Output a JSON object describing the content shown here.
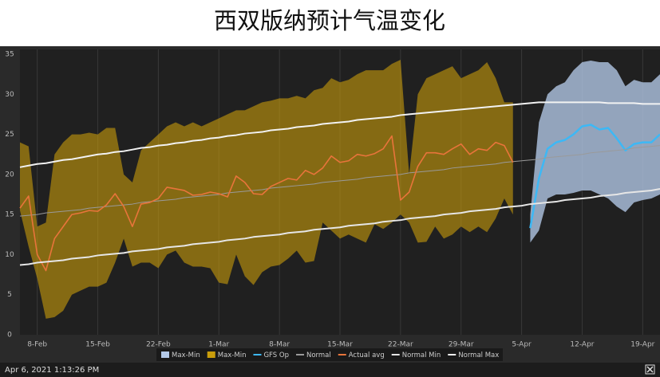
{
  "chart_data": {
    "type": "line",
    "title": "西双版纳预计气温变化",
    "footer": "Apr 6, 2021 1:13:26 PM",
    "categories": [
      null,
      null,
      "8-Feb",
      null,
      null,
      null,
      null,
      null,
      null,
      "15-Feb",
      null,
      null,
      null,
      null,
      null,
      null,
      "22-Feb",
      null,
      null,
      null,
      null,
      null,
      null,
      "1-Mar",
      null,
      null,
      null,
      null,
      null,
      null,
      "8-Mar",
      null,
      null,
      null,
      null,
      null,
      null,
      "15-Mar",
      null,
      null,
      null,
      null,
      null,
      null,
      "22-Mar",
      null,
      null,
      null,
      null,
      null,
      null,
      "29-Mar",
      null,
      null,
      null,
      null,
      null,
      null,
      "5-Apr",
      null,
      null,
      null,
      null,
      null,
      null,
      "12-Apr",
      null,
      null,
      null,
      null,
      null,
      null,
      "19-Apr",
      null,
      null
    ],
    "ylim": [
      0,
      35
    ],
    "yticks": [
      0,
      5,
      10,
      15,
      20,
      25,
      30,
      35
    ],
    "grid": false,
    "series": [
      {
        "name": "Max-Min",
        "type": "range",
        "color": "#b3c9e8",
        "high": [
          null,
          null,
          null,
          null,
          null,
          null,
          null,
          null,
          null,
          null,
          null,
          null,
          null,
          null,
          null,
          null,
          null,
          null,
          null,
          null,
          null,
          null,
          null,
          null,
          null,
          null,
          null,
          null,
          null,
          null,
          null,
          null,
          null,
          null,
          null,
          null,
          null,
          null,
          null,
          null,
          null,
          null,
          null,
          null,
          null,
          null,
          null,
          null,
          null,
          null,
          null,
          null,
          null,
          null,
          null,
          null,
          null,
          null,
          null,
          15,
          26.5,
          30,
          31,
          31.5,
          33,
          34,
          34.2,
          34,
          34,
          33,
          31,
          31.8,
          31.5,
          31.5,
          32.5
        ],
        "low": [
          null,
          null,
          null,
          null,
          null,
          null,
          null,
          null,
          null,
          null,
          null,
          null,
          null,
          null,
          null,
          null,
          null,
          null,
          null,
          null,
          null,
          null,
          null,
          null,
          null,
          null,
          null,
          null,
          null,
          null,
          null,
          null,
          null,
          null,
          null,
          null,
          null,
          null,
          null,
          null,
          null,
          null,
          null,
          null,
          null,
          null,
          null,
          null,
          null,
          null,
          null,
          null,
          null,
          null,
          null,
          null,
          null,
          null,
          null,
          11.5,
          13,
          17,
          17.5,
          17.5,
          17.7,
          18,
          18,
          17.5,
          17,
          16,
          15.3,
          16.5,
          16.8,
          17,
          17.5
        ]
      },
      {
        "name": "Max-Min",
        "type": "range",
        "color": "#c99d0b",
        "high": [
          24,
          23.5,
          13.5,
          14,
          22.5,
          24,
          25,
          25,
          25.2,
          25,
          25.8,
          25.8,
          20,
          19,
          23,
          24,
          25,
          26,
          26.5,
          26,
          26.5,
          26,
          26.5,
          27,
          27.5,
          28,
          28,
          28.5,
          29,
          29.2,
          29.5,
          29.5,
          29.8,
          29.5,
          30.5,
          30.8,
          32,
          31.5,
          31.8,
          32.5,
          33,
          33,
          33,
          33.8,
          34.3,
          20,
          30,
          32,
          32.5,
          33,
          33.5,
          32,
          32.5,
          33,
          34,
          32,
          29,
          29,
          null,
          null,
          null,
          null,
          null,
          null,
          null,
          null,
          null,
          null,
          null,
          null,
          null,
          null,
          null,
          null,
          null
        ],
        "low": [
          15.5,
          11,
          7,
          2,
          2.2,
          3,
          5,
          5.5,
          6,
          6,
          6.5,
          9,
          12,
          8.5,
          9,
          9,
          8.3,
          10,
          10.5,
          9,
          8.5,
          8.5,
          8.3,
          6.5,
          6.3,
          10,
          7.3,
          6.2,
          7.8,
          8.5,
          8.7,
          9.5,
          10.5,
          9,
          9.2,
          14,
          13,
          12,
          12.5,
          12,
          11.5,
          13.8,
          13.2,
          14,
          15,
          14,
          11.5,
          11.6,
          13.5,
          12,
          12.5,
          13.5,
          12.8,
          13.5,
          12.8,
          14.5,
          17,
          15,
          null,
          null,
          null,
          null,
          null,
          null,
          null,
          null,
          null,
          null,
          null,
          null,
          null,
          null,
          null,
          null,
          null
        ]
      },
      {
        "name": "GFS Op",
        "type": "line",
        "color": "#3db8f5",
        "values": [
          null,
          null,
          null,
          null,
          null,
          null,
          null,
          null,
          null,
          null,
          null,
          null,
          null,
          null,
          null,
          null,
          null,
          null,
          null,
          null,
          null,
          null,
          null,
          null,
          null,
          null,
          null,
          null,
          null,
          null,
          null,
          null,
          null,
          null,
          null,
          null,
          null,
          null,
          null,
          null,
          null,
          null,
          null,
          null,
          null,
          null,
          null,
          null,
          null,
          null,
          null,
          null,
          null,
          null,
          null,
          null,
          null,
          null,
          null,
          13.3,
          19.5,
          23.2,
          24,
          24.3,
          25,
          26,
          26.2,
          25.6,
          25.8,
          24.5,
          23,
          23.8,
          24,
          24,
          25
        ]
      },
      {
        "name": "Normal",
        "type": "line",
        "color": "#9a9a9a",
        "values": [
          14.8,
          14.9,
          15.0,
          15.2,
          15.3,
          15.4,
          15.5,
          15.6,
          15.8,
          15.9,
          16.0,
          16.1,
          16.2,
          16.3,
          16.5,
          16.6,
          16.7,
          16.8,
          16.9,
          17.1,
          17.2,
          17.3,
          17.4,
          17.5,
          17.7,
          17.8,
          17.9,
          18.0,
          18.1,
          18.3,
          18.4,
          18.5,
          18.6,
          18.7,
          18.8,
          19.0,
          19.1,
          19.2,
          19.3,
          19.4,
          19.6,
          19.7,
          19.8,
          19.9,
          20.0,
          20.2,
          20.3,
          20.4,
          20.5,
          20.6,
          20.8,
          20.9,
          21.0,
          21.1,
          21.2,
          21.3,
          21.5,
          21.6,
          21.7,
          21.8,
          21.9,
          22.1,
          22.2,
          22.3,
          22.4,
          22.5,
          22.7,
          22.8,
          22.9,
          23.0,
          23.1,
          23.3,
          23.4,
          23.5,
          23.6
        ]
      },
      {
        "name": "Actual avg",
        "type": "line",
        "color": "#e8743b",
        "values": [
          15.8,
          17.3,
          10,
          8,
          12,
          13.5,
          15,
          15.2,
          15.5,
          15.4,
          16.2,
          17.6,
          16,
          13.5,
          16.3,
          16.5,
          17,
          18.4,
          18.2,
          18,
          17.4,
          17.5,
          17.8,
          17.6,
          17.2,
          19.8,
          19,
          17.6,
          17.5,
          18.5,
          19,
          19.5,
          19.3,
          20.5,
          20,
          20.8,
          22.3,
          21.5,
          21.7,
          22.5,
          22.3,
          22.6,
          23.2,
          24.8,
          16.8,
          17.8,
          21,
          22.7,
          22.7,
          22.5,
          23.2,
          23.8,
          22.5,
          23.2,
          23,
          24,
          23.6,
          21.5,
          null,
          null,
          null,
          null,
          null,
          null,
          null,
          null,
          null,
          null,
          null,
          null,
          null,
          null,
          null,
          null,
          null
        ]
      },
      {
        "name": "Normal Min",
        "type": "line",
        "color": "#e6e6e6",
        "values": [
          8.7,
          8.8,
          9.0,
          9.1,
          9.2,
          9.3,
          9.5,
          9.6,
          9.7,
          9.9,
          10.0,
          10.1,
          10.2,
          10.4,
          10.5,
          10.6,
          10.7,
          10.9,
          11.0,
          11.1,
          11.3,
          11.4,
          11.5,
          11.6,
          11.8,
          11.9,
          12.0,
          12.2,
          12.3,
          12.4,
          12.5,
          12.7,
          12.8,
          12.9,
          13.1,
          13.2,
          13.3,
          13.4,
          13.6,
          13.7,
          13.8,
          13.9,
          14.1,
          14.2,
          14.3,
          14.5,
          14.6,
          14.7,
          14.8,
          15.0,
          15.1,
          15.2,
          15.4,
          15.5,
          15.6,
          15.7,
          15.9,
          16.0,
          16.1,
          16.3,
          16.4,
          16.5,
          16.6,
          16.8,
          16.9,
          17.0,
          17.1,
          17.3,
          17.4,
          17.5,
          17.7,
          17.8,
          17.9,
          18.0,
          18.2
        ]
      },
      {
        "name": "Normal Max",
        "type": "line",
        "color": "#f2f2f2",
        "values": [
          20.9,
          21.1,
          21.3,
          21.4,
          21.6,
          21.8,
          21.9,
          22.1,
          22.3,
          22.5,
          22.6,
          22.8,
          22.9,
          23.1,
          23.3,
          23.4,
          23.6,
          23.7,
          23.9,
          24.0,
          24.2,
          24.3,
          24.5,
          24.6,
          24.8,
          24.9,
          25.1,
          25.2,
          25.3,
          25.5,
          25.6,
          25.7,
          25.9,
          26.0,
          26.1,
          26.3,
          26.4,
          26.5,
          26.6,
          26.8,
          26.9,
          27.0,
          27.1,
          27.2,
          27.4,
          27.5,
          27.6,
          27.7,
          27.8,
          27.9,
          28.0,
          28.1,
          28.2,
          28.3,
          28.4,
          28.5,
          28.6,
          28.7,
          28.8,
          28.9,
          29.0,
          29.0,
          29.0,
          29.0,
          29.0,
          29.0,
          29.0,
          29.0,
          28.9,
          28.9,
          28.9,
          28.9,
          28.8,
          28.8,
          28.8
        ]
      }
    ]
  }
}
